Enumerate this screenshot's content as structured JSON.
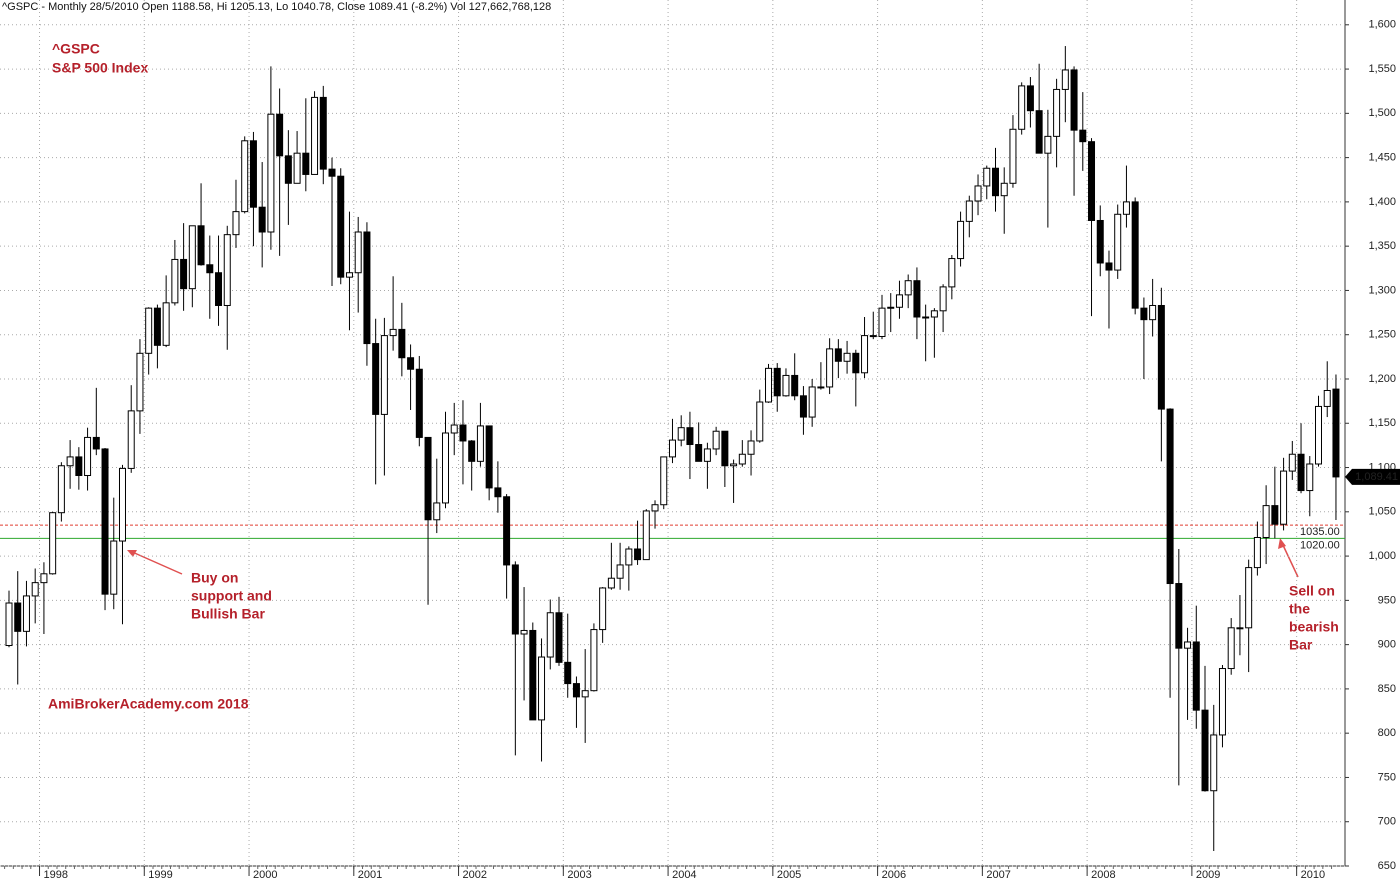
{
  "chart_data": {
    "type": "candlestick",
    "header": "^GSPC - Monthly 28/5/2010 Open 1188.58, Hi 1205.13, Lo 1040.78, Close 1089.41 (-8.2%) Vol 127,662,768,128",
    "annotations": {
      "symbol": "^GSPC",
      "index_name": "S&P 500 Index",
      "buy_note": [
        "Buy on",
        "support and",
        "Bullish Bar"
      ],
      "sell_note": [
        "Sell on",
        "the",
        "bearish",
        "Bar"
      ],
      "watermark": "AmiBrokerAcademy.com 2018"
    },
    "categories": [
      null,
      null,
      null,
      null,
      "1998",
      null,
      null,
      null,
      null,
      null,
      null,
      null,
      null,
      null,
      null,
      null,
      "1999",
      null,
      null,
      null,
      null,
      null,
      null,
      null,
      null,
      null,
      null,
      null,
      "2000",
      null,
      null,
      null,
      null,
      null,
      null,
      null,
      null,
      null,
      null,
      null,
      "2001",
      null,
      null,
      null,
      null,
      null,
      null,
      null,
      null,
      null,
      null,
      null,
      "2002",
      null,
      null,
      null,
      null,
      null,
      null,
      null,
      null,
      null,
      null,
      null,
      "2003",
      null,
      null,
      null,
      null,
      null,
      null,
      null,
      null,
      null,
      null,
      null,
      "2004",
      null,
      null,
      null,
      null,
      null,
      null,
      null,
      null,
      null,
      null,
      null,
      "2005",
      null,
      null,
      null,
      null,
      null,
      null,
      null,
      null,
      null,
      null,
      null,
      "2006",
      null,
      null,
      null,
      null,
      null,
      null,
      null,
      null,
      null,
      null,
      null,
      "2007",
      null,
      null,
      null,
      null,
      null,
      null,
      null,
      null,
      null,
      null,
      null,
      "2008",
      null,
      null,
      null,
      null,
      null,
      null,
      null,
      null,
      null,
      null,
      null,
      "2009",
      null,
      null,
      null,
      null,
      null,
      null,
      null,
      null,
      null,
      null,
      null,
      "2010",
      null,
      null,
      null,
      null
    ],
    "open": [
      899,
      947,
      915,
      955,
      970,
      980,
      1049,
      1102,
      1112,
      1091,
      1134,
      1121,
      957,
      1017,
      1099,
      1164,
      1229,
      1280,
      1238,
      1286,
      1335,
      1302,
      1373,
      1329,
      1320,
      1283,
      1363,
      1389,
      1469,
      1394,
      1366,
      1499,
      1452,
      1421,
      1455,
      1431,
      1518,
      1437,
      1429,
      1315,
      1320,
      1366,
      1240,
      1160,
      1249,
      1256,
      1224,
      1211,
      1134,
      1041,
      1060,
      1139,
      1148,
      1130,
      1107,
      1147,
      1077,
      1067,
      990,
      912,
      916,
      815,
      886,
      936,
      880,
      856,
      841,
      848,
      917,
      964,
      975,
      990,
      1008,
      996,
      1051,
      1058,
      1112,
      1131,
      1145,
      1126,
      1107,
      1121,
      1141,
      1102,
      1104,
      1115,
      1130,
      1174,
      1212,
      1181,
      1204,
      1181,
      1157,
      1191,
      1191,
      1234,
      1220,
      1229,
      1207,
      1249,
      1248,
      1280,
      1281,
      1295,
      1311,
      1270,
      1270,
      1277,
      1304,
      1336,
      1378,
      1401,
      1418,
      1438,
      1407,
      1421,
      1482,
      1531,
      1503,
      1455,
      1474,
      1527,
      1549,
      1481,
      1468,
      1379,
      1331,
      1323,
      1386,
      1400,
      1280,
      1267,
      1283,
      1166,
      969,
      896,
      903,
      826,
      735,
      798,
      873,
      919,
      919,
      987,
      1021,
      1057,
      1036,
      1096,
      1115,
      1074,
      1104,
      1169,
      1188.58
    ],
    "high": [
      961,
      983,
      972,
      986,
      993,
      1050,
      1106,
      1131,
      1123,
      1145,
      1190,
      1122,
      1066,
      1103,
      1193,
      1245,
      1281,
      1284,
      1317,
      1357,
      1376,
      1373,
      1421,
      1362,
      1362,
      1373,
      1425,
      1474,
      1479,
      1445,
      1553,
      1528,
      1481,
      1480,
      1517,
      1525,
      1531,
      1450,
      1438,
      1389,
      1383,
      1377,
      1268,
      1269,
      1316,
      1286,
      1239,
      1226,
      1134,
      1110,
      1163,
      1173,
      1176,
      1131,
      1173,
      1147,
      1107,
      1070,
      994,
      965,
      925,
      907,
      951,
      954,
      935,
      864,
      895,
      924,
      965,
      1015,
      1015,
      1011,
      1040,
      1053,
      1063,
      1112,
      1155,
      1159,
      1163,
      1151,
      1128,
      1146,
      1141,
      1109,
      1131,
      1142,
      1188,
      1217,
      1218,
      1212,
      1229,
      1192,
      1200,
      1219,
      1246,
      1245,
      1243,
      1233,
      1270,
      1276,
      1295,
      1297,
      1311,
      1318,
      1326,
      1284,
      1280,
      1307,
      1340,
      1389,
      1407,
      1431,
      1441,
      1461,
      1439,
      1498,
      1535,
      1541,
      1556,
      1504,
      1539,
      1576,
      1553,
      1524,
      1472,
      1396,
      1345,
      1397,
      1441,
      1405,
      1292,
      1313,
      1303,
      1167,
      1008,
      919,
      944,
      876,
      832,
      877,
      930,
      956,
      996,
      1039,
      1080,
      1101,
      1111,
      1130,
      1150,
      1113,
      1181,
      1220,
      1205.13
    ],
    "low": [
      897,
      855,
      898,
      924,
      912,
      979,
      1039,
      1076,
      1075,
      1074,
      1114,
      939,
      940,
      923,
      1094,
      1138,
      1205,
      1212,
      1236,
      1283,
      1277,
      1281,
      1328,
      1268,
      1260,
      1233,
      1348,
      1387,
      1350,
      1326,
      1346,
      1339,
      1374,
      1421,
      1412,
      1431,
      1420,
      1305,
      1307,
      1255,
      1275,
      1215,
      1081,
      1091,
      1232,
      1203,
      1165,
      1124,
      945,
      1026,
      1054,
      1114,
      1081,
      1074,
      1101,
      1063,
      1049,
      952,
      775,
      837,
      815,
      768,
      872,
      876,
      840,
      806,
      789,
      847,
      902,
      962,
      962,
      961,
      990,
      996,
      1031,
      1053,
      1105,
      1124,
      1087,
      1107,
      1076,
      1114,
      1078,
      1060,
      1101,
      1091,
      1128,
      1173,
      1163,
      1180,
      1176,
      1137,
      1146,
      1188,
      1183,
      1201,
      1206,
      1169,
      1201,
      1245,
      1245,
      1253,
      1268,
      1280,
      1245,
      1220,
      1224,
      1253,
      1290,
      1327,
      1360,
      1385,
      1403,
      1389,
      1364,
      1416,
      1476,
      1484,
      1455,
      1371,
      1439,
      1490,
      1407,
      1435,
      1271,
      1316,
      1257,
      1313,
      1371,
      1273,
      1200,
      1248,
      1107,
      840,
      741,
      815,
      805,
      734,
      667,
      784,
      866,
      888,
      869,
      978,
      991,
      1020,
      1029,
      1086,
      1071,
      1045,
      1101,
      1157,
      1040.78
    ],
    "close": [
      947,
      915,
      955,
      970,
      980,
      1049,
      1102,
      1112,
      1091,
      1134,
      1121,
      957,
      1017,
      1099,
      1164,
      1229,
      1280,
      1238,
      1286,
      1335,
      1302,
      1373,
      1329,
      1320,
      1283,
      1363,
      1389,
      1469,
      1394,
      1366,
      1499,
      1452,
      1421,
      1455,
      1431,
      1518,
      1437,
      1429,
      1315,
      1320,
      1366,
      1240,
      1160,
      1249,
      1256,
      1224,
      1211,
      1134,
      1041,
      1060,
      1139,
      1148,
      1130,
      1107,
      1147,
      1077,
      1067,
      990,
      912,
      916,
      815,
      886,
      936,
      880,
      856,
      841,
      848,
      917,
      964,
      975,
      990,
      1008,
      996,
      1051,
      1058,
      1112,
      1131,
      1145,
      1126,
      1107,
      1121,
      1141,
      1102,
      1104,
      1115,
      1130,
      1174,
      1212,
      1181,
      1204,
      1181,
      1157,
      1191,
      1191,
      1234,
      1220,
      1229,
      1207,
      1249,
      1248,
      1280,
      1281,
      1295,
      1311,
      1270,
      1270,
      1277,
      1304,
      1336,
      1378,
      1401,
      1418,
      1438,
      1407,
      1421,
      1482,
      1531,
      1503,
      1455,
      1474,
      1527,
      1549,
      1481,
      1468,
      1379,
      1331,
      1323,
      1386,
      1400,
      1280,
      1267,
      1283,
      1166,
      969,
      896,
      903,
      826,
      735,
      798,
      873,
      919,
      919,
      987,
      1021,
      1057,
      1036,
      1096,
      1115,
      1074,
      1104,
      1169,
      1187,
      1089.41
    ],
    "up_color": "#ffffff",
    "down_color": "#000000",
    "ylim": [
      650,
      1628
    ],
    "yticks": [
      650,
      700,
      750,
      800,
      850,
      900,
      950,
      {
        "value": 1000,
        "label": "1,000"
      },
      {
        "value": 1050,
        "label": "1,050"
      },
      {
        "value": 1100,
        "label": "1,100"
      },
      {
        "value": 1150,
        "label": "1,150"
      },
      {
        "value": 1200,
        "label": "1,200"
      },
      {
        "value": 1250,
        "label": "1,250"
      },
      {
        "value": 1300,
        "label": "1,300"
      },
      {
        "value": 1350,
        "label": "1,350"
      },
      {
        "value": 1400,
        "label": "1,400"
      },
      {
        "value": 1450,
        "label": "1,450"
      },
      {
        "value": 1500,
        "label": "1,500"
      },
      {
        "value": 1550,
        "label": "1,550"
      },
      {
        "value": 1600,
        "label": "1,600"
      }
    ],
    "grid": true,
    "levels": [
      {
        "value": 1035,
        "label": "1035.00"
      },
      {
        "value": 1020,
        "label": "1020.00"
      }
    ],
    "level_colors": [
      "#e03c31",
      "#2ea82e"
    ],
    "level_dashed": [
      true,
      false
    ],
    "last_price": {
      "value": 1089.41,
      "label": "1,089.41"
    }
  }
}
